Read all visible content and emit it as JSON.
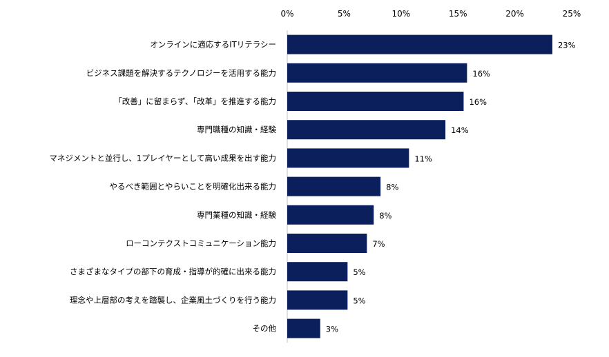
{
  "chart_data": {
    "type": "bar",
    "orientation": "horizontal",
    "title": "",
    "xlabel": "",
    "ylabel": "",
    "xlim": [
      0,
      25
    ],
    "x_ticks": [
      "0%",
      "5%",
      "10%",
      "15%",
      "20%",
      "25%"
    ],
    "x_axis_position": "top",
    "grid": false,
    "bar_color": "#0b1f5c",
    "categories": [
      "オンラインに適応するITリテラシー",
      "ビジネス課題を解決するテクノロジーを活用する能力",
      "「改善」に留まらず、「改革」を推進する能力",
      "専門職種の知識・経験",
      "マネジメントと並行し、1プレイヤーとして高い成果を出す能力",
      "やるべき範囲とやらいことを明確化出来る能力",
      "専門業種の知識・経験",
      "ローコンテクストコミュニケーション能力",
      "さまざまなタイプの部下の育成・指導が的確に出来る能力",
      "理念や上層部の考えを踏襲し、企業風土づくりを行う能力",
      "その他"
    ],
    "values": [
      23.3,
      15.8,
      15.5,
      13.9,
      10.7,
      8.2,
      7.6,
      7.0,
      5.3,
      5.3,
      2.9
    ],
    "value_labels": [
      "23%",
      "16%",
      "16%",
      "14%",
      "11%",
      "8%",
      "8%",
      "7%",
      "5%",
      "5%",
      "3%"
    ]
  }
}
